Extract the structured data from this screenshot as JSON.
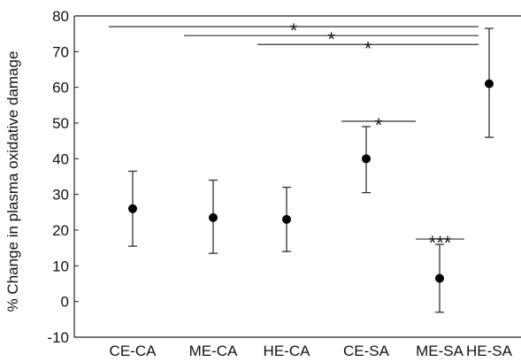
{
  "chart_data": {
    "type": "scatter",
    "ylabel": "% Change in plasma oxidative damage",
    "xlabel": "",
    "title": "",
    "ylim": [
      -10,
      80
    ],
    "yticks": [
      -10,
      0,
      10,
      20,
      30,
      40,
      50,
      60,
      70,
      80
    ],
    "categories": [
      "CE-CA",
      "ME-CA",
      "HE-CA",
      "CE-SA",
      "ME-SA",
      "HE-SA"
    ],
    "series": [
      {
        "values": [
          26,
          23.5,
          23,
          40,
          6.5,
          61
        ],
        "error_low": [
          15.5,
          13.5,
          14,
          30.5,
          -3,
          46
        ],
        "error_high": [
          36.5,
          34,
          32,
          49,
          16,
          76.5
        ]
      }
    ],
    "significance": [
      {
        "label": "*",
        "from": "CE-CA",
        "to": "HE-SA",
        "y": 77
      },
      {
        "label": "*",
        "from": "ME-CA",
        "to": "HE-SA",
        "y": 74.5
      },
      {
        "label": "*",
        "from": "HE-CA",
        "to": "HE-SA",
        "y": 72
      },
      {
        "label": "*",
        "from": "CE-SA",
        "to": "ME-SA",
        "y": 50.5
      },
      {
        "label": "***",
        "from": "ME-SA",
        "to": "HE-SA",
        "y": 17.5
      }
    ],
    "grid": false,
    "legend": "none",
    "colors": {
      "points": "#000000",
      "axis": "#222222",
      "lines": "#333333"
    }
  }
}
